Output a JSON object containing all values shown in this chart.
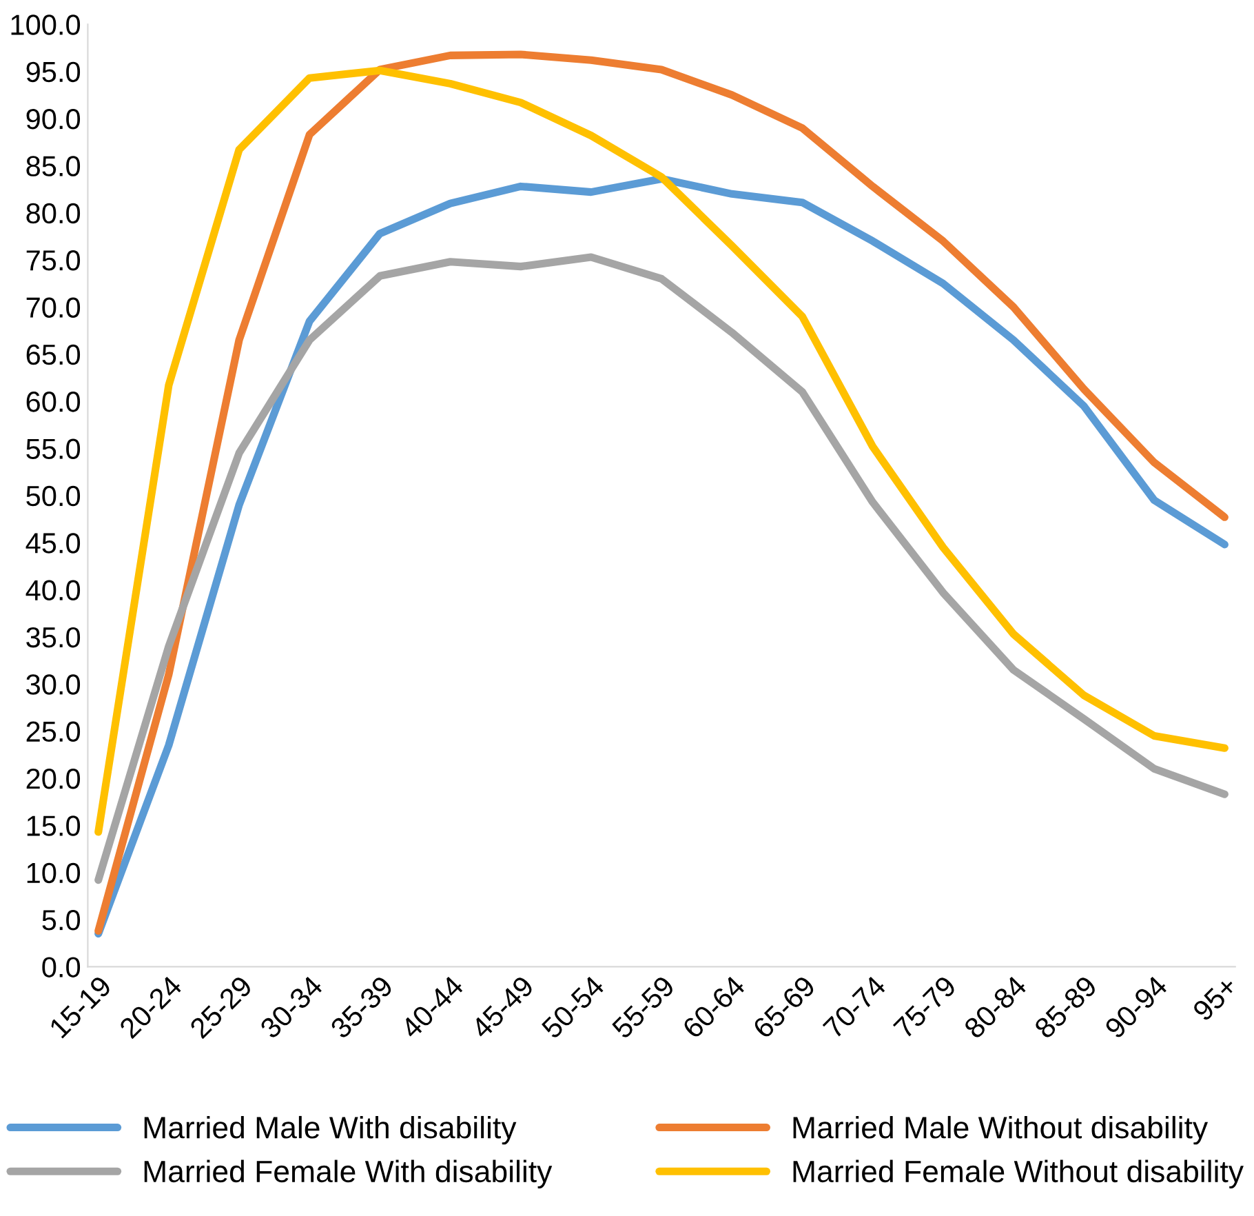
{
  "chart_data": {
    "type": "line",
    "categories": [
      "15-19",
      "20-24",
      "25-29",
      "30-34",
      "35-39",
      "40-44",
      "45-49",
      "50-54",
      "55-59",
      "60-64",
      "65-69",
      "70-74",
      "75-79",
      "80-84",
      "85-89",
      "90-94",
      "95+"
    ],
    "series": [
      {
        "name": "Married Male With disability",
        "color": "#5b9bd5",
        "values": [
          3.5,
          23.5,
          49.0,
          68.5,
          77.8,
          81.0,
          82.8,
          82.2,
          83.6,
          82.0,
          81.1,
          77.0,
          72.5,
          66.5,
          59.5,
          49.5,
          44.8
        ]
      },
      {
        "name": "Married Male Without disability",
        "color": "#ed7d31",
        "values": [
          3.8,
          31.0,
          66.5,
          88.3,
          95.2,
          96.7,
          96.8,
          96.2,
          95.2,
          92.5,
          89.0,
          82.8,
          77.0,
          70.0,
          61.3,
          53.5,
          47.7
        ]
      },
      {
        "name": "Married Female With disability",
        "color": "#a5a5a5",
        "values": [
          9.2,
          34.0,
          54.5,
          66.5,
          73.3,
          74.8,
          74.3,
          75.3,
          73.0,
          67.3,
          61.0,
          49.3,
          39.7,
          31.5,
          26.3,
          21.0,
          18.3
        ]
      },
      {
        "name": "Married Female Without disability",
        "color": "#ffc000",
        "values": [
          14.3,
          61.7,
          86.7,
          94.3,
          95.1,
          93.7,
          91.7,
          88.2,
          83.8,
          76.5,
          69.0,
          55.2,
          44.5,
          35.3,
          28.8,
          24.5,
          23.2
        ]
      }
    ],
    "ylim": [
      0,
      100
    ],
    "yticks": [
      {
        "value": 0,
        "label": "0.0"
      },
      {
        "value": 5,
        "label": "5.0"
      },
      {
        "value": 10,
        "label": "10.0"
      },
      {
        "value": 15,
        "label": "15.0"
      },
      {
        "value": 20,
        "label": "20.0"
      },
      {
        "value": 25,
        "label": "25.0"
      },
      {
        "value": 30,
        "label": "30.0"
      },
      {
        "value": 35,
        "label": "35.0"
      },
      {
        "value": 40,
        "label": "40.0"
      },
      {
        "value": 45,
        "label": "45.0"
      },
      {
        "value": 50,
        "label": "50.0"
      },
      {
        "value": 55,
        "label": "55.0"
      },
      {
        "value": 60,
        "label": "60.0"
      },
      {
        "value": 65,
        "label": "65.0"
      },
      {
        "value": 70,
        "label": "70.0"
      },
      {
        "value": 75,
        "label": "75.0"
      },
      {
        "value": 80,
        "label": "80.0"
      },
      {
        "value": 85,
        "label": "85.0"
      },
      {
        "value": 90,
        "label": "90.0"
      },
      {
        "value": 95,
        "label": "95.0"
      },
      {
        "value": 100,
        "label": "100.0"
      }
    ],
    "grid": false,
    "legend": "bottom"
  }
}
